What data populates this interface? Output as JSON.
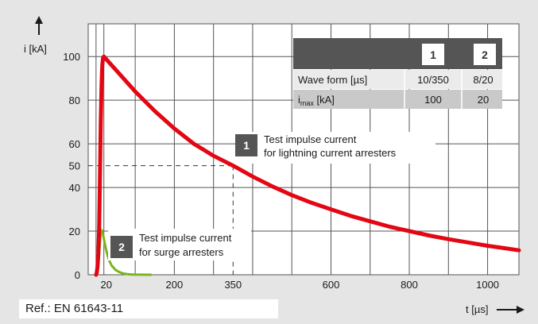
{
  "chart_data": {
    "type": "line",
    "ylabel": "i [kA]",
    "xlabel": "t [µs]",
    "x_ticks": [
      "20",
      "200",
      "350",
      "600",
      "800",
      "1000"
    ],
    "x_tick_values": [
      20,
      200,
      350,
      600,
      800,
      1000
    ],
    "y_ticks": [
      "0",
      "20",
      "40",
      "50",
      "60",
      "80",
      "100"
    ],
    "y_tick_values": [
      0,
      20,
      40,
      50,
      60,
      80,
      100
    ],
    "xlim": [
      -20,
      1080
    ],
    "ylim": [
      0,
      115
    ],
    "grid": true,
    "series": [
      {
        "id": "1",
        "color": "#e30613",
        "x": [
          0,
          2,
          4,
          6,
          8,
          10,
          12,
          14,
          16,
          18,
          20,
          30,
          50,
          75,
          100,
          150,
          200,
          250,
          300,
          350,
          400,
          450,
          500,
          550,
          600,
          650,
          700,
          750,
          800,
          850,
          900,
          950,
          1000,
          1050,
          1080
        ],
        "values": [
          0,
          1,
          4,
          10,
          22,
          45,
          70,
          87,
          96,
          99.5,
          100,
          98,
          94,
          89,
          84,
          75,
          67,
          60,
          54.5,
          50,
          45,
          40.5,
          36.5,
          33,
          30,
          27,
          24.5,
          22,
          20,
          18,
          16.3,
          14.8,
          13.3,
          12,
          11.2
        ]
      },
      {
        "id": "2",
        "color": "#7ab51d",
        "x": [
          0,
          2,
          4,
          6,
          8,
          10,
          12,
          14,
          16,
          18,
          20,
          25,
          30,
          35,
          40,
          50,
          60,
          70,
          80,
          90,
          100,
          120,
          140
        ],
        "values": [
          0,
          0.5,
          2,
          5,
          10,
          15,
          19,
          20.5,
          20,
          18.5,
          16.5,
          12,
          8.5,
          6,
          4.2,
          2.2,
          1.2,
          0.6,
          0.3,
          0.15,
          0.08,
          0.02,
          0
        ]
      }
    ],
    "reference_lines": [
      {
        "x": 350,
        "y": 50,
        "style": "dashed"
      }
    ],
    "annotations": [
      {
        "badge": "1",
        "lines": [
          "Test impulse current",
          "for lightning current arresters"
        ]
      },
      {
        "badge": "2",
        "lines": [
          "Test impulse current",
          "for surge arresters"
        ]
      }
    ],
    "table": {
      "headers": [
        "",
        "1",
        "2"
      ],
      "rows": [
        {
          "label": "Wave form [µs]",
          "values": [
            "10/350",
            "8/20"
          ]
        },
        {
          "label_main": "i",
          "label_sub": "max",
          "label_rest": " [kA]",
          "values": [
            "100",
            "20"
          ]
        }
      ]
    }
  },
  "reference": "Ref.: EN 61643-11"
}
